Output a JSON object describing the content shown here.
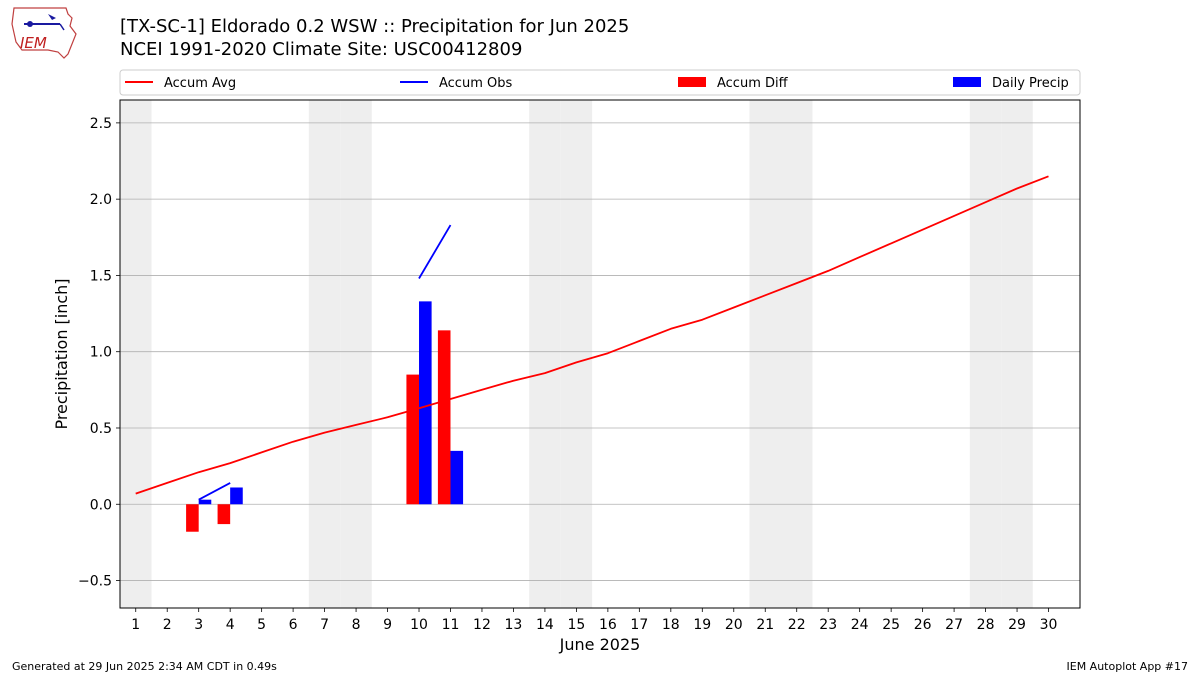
{
  "header": {
    "title": "[TX-SC-1] Eldorado 0.2 WSW :: Precipitation for Jun 2025",
    "subtitle": "NCEI 1991-2020 Climate Site: USC00412809",
    "logo_text": "IEM"
  },
  "footer": {
    "generated": "Generated at 29 Jun 2025 2:34 AM CDT in 0.49s",
    "app": "IEM Autoplot App #17"
  },
  "colors": {
    "avg": "#ff0000",
    "obs": "#0000ff",
    "diff": "#ff0000",
    "daily": "#0000ff",
    "weekend_shade": "#eeeeee",
    "grid": "#b0b0b0"
  },
  "chart_data": {
    "type": "line",
    "title": "[TX-SC-1] Eldorado 0.2 WSW :: Precipitation for Jun 2025",
    "xlabel": "June 2025",
    "ylabel": "Precipitation [inch]",
    "x": [
      1,
      2,
      3,
      4,
      5,
      6,
      7,
      8,
      9,
      10,
      11,
      12,
      13,
      14,
      15,
      16,
      17,
      18,
      19,
      20,
      21,
      22,
      23,
      24,
      25,
      26,
      27,
      28,
      29,
      30
    ],
    "xlim": [
      0.5,
      31.0
    ],
    "ylim": [
      -0.68,
      2.65
    ],
    "yticks": [
      -0.5,
      0.0,
      0.5,
      1.0,
      1.5,
      2.0,
      2.5
    ],
    "ytick_labels": [
      "−0.5",
      "0.0",
      "0.5",
      "1.0",
      "1.5",
      "2.0",
      "2.5"
    ],
    "grid": "horizontal",
    "legend_placement": "top, horizontal above plot",
    "weekend_days": [
      1,
      7,
      8,
      14,
      15,
      21,
      22,
      28,
      29
    ],
    "legend": [
      "Accum Avg",
      "Accum Obs",
      "Accum Diff",
      "Daily Precip"
    ],
    "series": [
      {
        "name": "Accum Avg",
        "kind": "line",
        "x": [
          1,
          2,
          3,
          4,
          5,
          6,
          7,
          8,
          9,
          10,
          11,
          12,
          13,
          14,
          15,
          16,
          17,
          18,
          19,
          20,
          21,
          22,
          23,
          24,
          25,
          26,
          27,
          28,
          29,
          30
        ],
        "values": [
          0.07,
          0.14,
          0.21,
          0.27,
          0.34,
          0.41,
          0.47,
          0.52,
          0.57,
          0.63,
          0.69,
          0.75,
          0.81,
          0.86,
          0.93,
          0.99,
          1.07,
          1.15,
          1.21,
          1.29,
          1.37,
          1.45,
          1.53,
          1.62,
          1.71,
          1.8,
          1.89,
          1.98,
          2.07,
          2.15
        ]
      },
      {
        "name": "Accum Obs",
        "kind": "line",
        "x": [
          3,
          4,
          null,
          10,
          11
        ],
        "values": [
          0.03,
          0.14,
          null,
          1.48,
          1.83
        ]
      },
      {
        "name": "Accum Diff",
        "kind": "bar",
        "x": [
          3,
          4,
          10,
          11
        ],
        "values": [
          -0.18,
          -0.13,
          0.85,
          1.14
        ]
      },
      {
        "name": "Daily Precip",
        "kind": "bar",
        "x": [
          3,
          4,
          10,
          11
        ],
        "values": [
          0.03,
          0.11,
          1.33,
          0.35
        ]
      }
    ]
  }
}
